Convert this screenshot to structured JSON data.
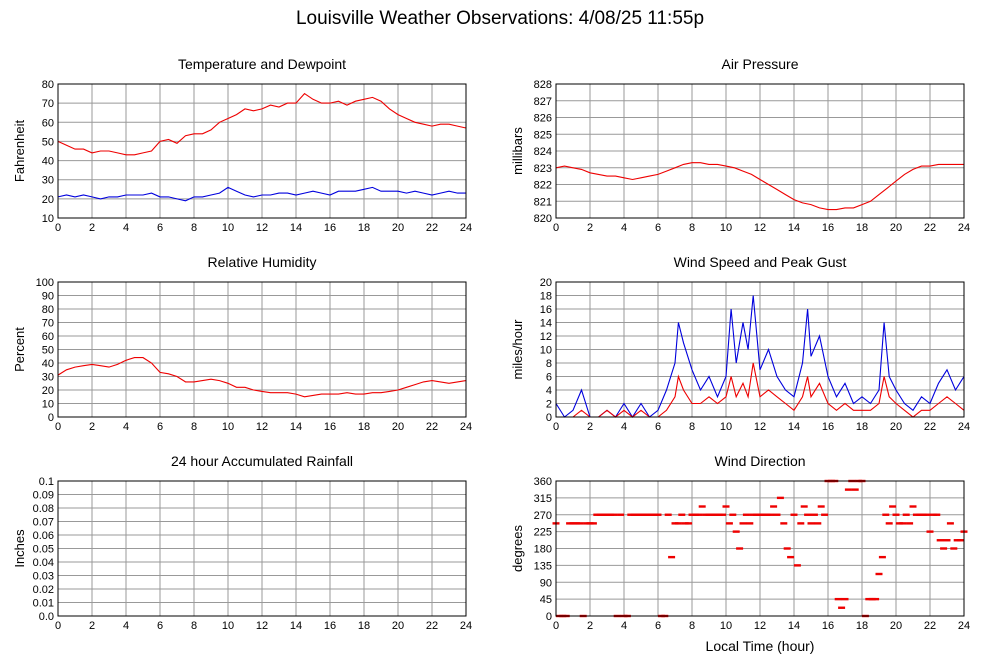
{
  "title": "Louisville Weather Observations: 4/08/25 11:55p",
  "xaxis_label": "Local Time (hour)",
  "colors": {
    "red": "#ee0000",
    "blue": "#0000dd",
    "grid": "#999999"
  },
  "chart_data": [
    {
      "type": "line",
      "title": "Temperature and Dewpoint",
      "ylabel": "Fahrenheit",
      "xlim": [
        0,
        24
      ],
      "ylim": [
        10,
        80
      ],
      "xticks": [
        "0",
        "2",
        "4",
        "6",
        "8",
        "10",
        "12",
        "14",
        "16",
        "18",
        "20",
        "22",
        "24"
      ],
      "yticks": [
        "10",
        "20",
        "30",
        "40",
        "50",
        "60",
        "70",
        "80"
      ],
      "grid": true,
      "series": [
        {
          "color": "#ee0000",
          "x": [
            0,
            0.5,
            1,
            1.5,
            2,
            2.5,
            3,
            3.5,
            4,
            4.5,
            5,
            5.5,
            6,
            6.5,
            7,
            7.5,
            8,
            8.5,
            9,
            9.5,
            10,
            10.5,
            11,
            11.5,
            12,
            12.5,
            13,
            13.5,
            14,
            14.5,
            15,
            15.5,
            16,
            16.5,
            17,
            17.5,
            18,
            18.5,
            19,
            19.5,
            20,
            20.5,
            21,
            21.5,
            22,
            22.5,
            23,
            23.5,
            24
          ],
          "y": [
            50,
            48,
            46,
            46,
            44,
            45,
            45,
            44,
            43,
            43,
            44,
            45,
            50,
            51,
            49,
            53,
            54,
            54,
            56,
            60,
            62,
            64,
            67,
            66,
            67,
            69,
            68,
            70,
            70,
            75,
            72,
            70,
            70,
            71,
            69,
            71,
            72,
            73,
            71,
            67,
            64,
            62,
            60,
            59,
            58,
            59,
            59,
            58,
            57
          ]
        },
        {
          "color": "#0000dd",
          "x": [
            0,
            0.5,
            1,
            1.5,
            2,
            2.5,
            3,
            3.5,
            4,
            4.5,
            5,
            5.5,
            6,
            6.5,
            7,
            7.5,
            8,
            8.5,
            9,
            9.5,
            10,
            10.5,
            11,
            11.5,
            12,
            12.5,
            13,
            13.5,
            14,
            14.5,
            15,
            15.5,
            16,
            16.5,
            17,
            17.5,
            18,
            18.5,
            19,
            19.5,
            20,
            20.5,
            21,
            21.5,
            22,
            22.5,
            23,
            23.5,
            24
          ],
          "y": [
            21,
            22,
            21,
            22,
            21,
            20,
            21,
            21,
            22,
            22,
            22,
            23,
            21,
            21,
            20,
            19,
            21,
            21,
            22,
            23,
            26,
            24,
            22,
            21,
            22,
            22,
            23,
            23,
            22,
            23,
            24,
            23,
            22,
            24,
            24,
            24,
            25,
            26,
            24,
            24,
            24,
            23,
            24,
            23,
            22,
            23,
            24,
            23,
            23
          ]
        }
      ]
    },
    {
      "type": "line",
      "title": "Air Pressure",
      "ylabel": "millibars",
      "xlim": [
        0,
        24
      ],
      "ylim": [
        820,
        828
      ],
      "xticks": [
        "0",
        "2",
        "4",
        "6",
        "8",
        "10",
        "12",
        "14",
        "16",
        "18",
        "20",
        "22",
        "24"
      ],
      "yticks": [
        "820",
        "821",
        "822",
        "823",
        "824",
        "825",
        "826",
        "827",
        "828"
      ],
      "grid": true,
      "series": [
        {
          "color": "#ee0000",
          "x": [
            0,
            0.5,
            1,
            1.5,
            2,
            2.5,
            3,
            3.5,
            4,
            4.5,
            5,
            5.5,
            6,
            6.5,
            7,
            7.5,
            8,
            8.5,
            9,
            9.5,
            10,
            10.5,
            11,
            11.5,
            12,
            12.5,
            13,
            13.5,
            14,
            14.5,
            15,
            15.5,
            16,
            16.5,
            17,
            17.5,
            18,
            18.5,
            19,
            19.5,
            20,
            20.5,
            21,
            21.5,
            22,
            22.5,
            23,
            23.5,
            24
          ],
          "y": [
            823.0,
            823.1,
            823.0,
            822.9,
            822.7,
            822.6,
            822.5,
            822.5,
            822.4,
            822.3,
            822.4,
            822.5,
            822.6,
            822.8,
            823.0,
            823.2,
            823.3,
            823.3,
            823.2,
            823.2,
            823.1,
            823.0,
            822.8,
            822.6,
            822.3,
            822.0,
            821.7,
            821.4,
            821.1,
            820.9,
            820.8,
            820.6,
            820.5,
            820.5,
            820.6,
            820.6,
            820.8,
            821.0,
            821.4,
            821.8,
            822.2,
            822.6,
            822.9,
            823.1,
            823.1,
            823.2,
            823.2,
            823.2,
            823.2
          ]
        }
      ]
    },
    {
      "type": "line",
      "title": "Relative Humidity",
      "ylabel": "Percent",
      "xlim": [
        0,
        24
      ],
      "ylim": [
        0,
        100
      ],
      "xticks": [
        "0",
        "2",
        "4",
        "6",
        "8",
        "10",
        "12",
        "14",
        "16",
        "18",
        "20",
        "22",
        "24"
      ],
      "yticks": [
        "0",
        "10",
        "20",
        "30",
        "40",
        "50",
        "60",
        "70",
        "80",
        "90",
        "100"
      ],
      "grid": true,
      "series": [
        {
          "color": "#ee0000",
          "x": [
            0,
            0.5,
            1,
            1.5,
            2,
            2.5,
            3,
            3.5,
            4,
            4.5,
            5,
            5.5,
            6,
            6.5,
            7,
            7.5,
            8,
            8.5,
            9,
            9.5,
            10,
            10.5,
            11,
            11.5,
            12,
            12.5,
            13,
            13.5,
            14,
            14.5,
            15,
            15.5,
            16,
            16.5,
            17,
            17.5,
            18,
            18.5,
            19,
            19.5,
            20,
            20.5,
            21,
            21.5,
            22,
            22.5,
            23,
            23.5,
            24
          ],
          "y": [
            31,
            35,
            37,
            38,
            39,
            38,
            37,
            39,
            42,
            44,
            44,
            40,
            33,
            32,
            30,
            26,
            26,
            27,
            28,
            27,
            25,
            22,
            22,
            20,
            19,
            18,
            18,
            18,
            17,
            15,
            16,
            17,
            17,
            17,
            18,
            17,
            17,
            18,
            18,
            19,
            20,
            22,
            24,
            26,
            27,
            26,
            25,
            26,
            27
          ]
        }
      ]
    },
    {
      "type": "line",
      "title": "Wind Speed and Peak Gust",
      "ylabel": "miles/hour",
      "xlim": [
        0,
        24
      ],
      "ylim": [
        0,
        20
      ],
      "xticks": [
        "0",
        "2",
        "4",
        "6",
        "8",
        "10",
        "12",
        "14",
        "16",
        "18",
        "20",
        "22",
        "24"
      ],
      "yticks": [
        "0",
        "2",
        "4",
        "6",
        "8",
        "10",
        "12",
        "14",
        "16",
        "18",
        "20"
      ],
      "grid": true,
      "series": [
        {
          "color": "#0000dd",
          "x": [
            0,
            0.5,
            1,
            1.5,
            2,
            2.5,
            3,
            3.5,
            4,
            4.5,
            5,
            5.5,
            6,
            6.5,
            7,
            7.2,
            7.5,
            8,
            8.5,
            9,
            9.5,
            10,
            10.3,
            10.6,
            11,
            11.3,
            11.6,
            12,
            12.5,
            13,
            13.5,
            14,
            14.5,
            14.8,
            15,
            15.5,
            16,
            16.5,
            17,
            17.5,
            18,
            18.5,
            19,
            19.3,
            19.6,
            20,
            20.5,
            21,
            21.5,
            22,
            22.5,
            23,
            23.5,
            24
          ],
          "y": [
            2,
            0,
            1,
            4,
            0,
            0,
            1,
            0,
            2,
            0,
            2,
            0,
            1,
            4,
            8,
            14,
            11,
            7,
            4,
            6,
            3,
            6,
            16,
            8,
            14,
            10,
            18,
            7,
            10,
            6,
            4,
            3,
            8,
            16,
            9,
            12,
            6,
            3,
            5,
            2,
            3,
            2,
            4,
            14,
            6,
            4,
            2,
            1,
            3,
            2,
            5,
            7,
            4,
            6
          ]
        },
        {
          "color": "#ee0000",
          "x": [
            0,
            0.5,
            1,
            1.5,
            2,
            2.5,
            3,
            3.5,
            4,
            4.5,
            5,
            5.5,
            6,
            6.5,
            7,
            7.2,
            7.5,
            8,
            8.5,
            9,
            9.5,
            10,
            10.3,
            10.6,
            11,
            11.3,
            11.6,
            12,
            12.5,
            13,
            13.5,
            14,
            14.5,
            14.8,
            15,
            15.5,
            16,
            16.5,
            17,
            17.5,
            18,
            18.5,
            19,
            19.3,
            19.6,
            20,
            20.5,
            21,
            21.5,
            22,
            22.5,
            23,
            23.5,
            24
          ],
          "y": [
            0,
            0,
            0,
            1,
            0,
            0,
            1,
            0,
            1,
            0,
            1,
            0,
            0,
            1,
            3,
            6,
            4,
            2,
            2,
            3,
            2,
            3,
            6,
            3,
            5,
            3,
            8,
            3,
            4,
            3,
            2,
            1,
            3,
            6,
            3,
            5,
            2,
            1,
            2,
            1,
            1,
            1,
            2,
            6,
            3,
            2,
            1,
            0,
            1,
            1,
            2,
            3,
            2,
            1
          ]
        }
      ]
    },
    {
      "type": "line",
      "title": "24 hour Accumulated Rainfall",
      "ylabel": "Inches",
      "xlim": [
        0,
        24
      ],
      "ylim": [
        0,
        0.1
      ],
      "xticks": [
        "0",
        "2",
        "4",
        "6",
        "8",
        "10",
        "12",
        "14",
        "16",
        "18",
        "20",
        "22",
        "24"
      ],
      "yticks": [
        "0.0",
        "0.01",
        "0.02",
        "0.03",
        "0.04",
        "0.05",
        "0.06",
        "0.07",
        "0.08",
        "0.09",
        "0.1"
      ],
      "grid": true,
      "series": [
        {
          "color": "#ee0000",
          "x": [
            0,
            24
          ],
          "y": [
            0,
            0
          ]
        }
      ]
    },
    {
      "type": "scatter",
      "title": "Wind Direction",
      "ylabel": "degrees",
      "xlim": [
        0,
        24
      ],
      "ylim": [
        0,
        360
      ],
      "xticks": [
        "0",
        "2",
        "4",
        "6",
        "8",
        "10",
        "12",
        "14",
        "16",
        "18",
        "20",
        "22",
        "24"
      ],
      "yticks": [
        "0",
        "45",
        "90",
        "135",
        "180",
        "225",
        "270",
        "315",
        "360"
      ],
      "grid": true,
      "series": [
        {
          "color": "#ee0000",
          "x": [
            0,
            0.2,
            0.4,
            0.6,
            0.8,
            1.0,
            1.2,
            1.4,
            1.6,
            1.8,
            2.0,
            2.2,
            2.4,
            2.6,
            2.8,
            3.0,
            3.2,
            3.4,
            3.6,
            3.8,
            4.0,
            4.2,
            4.4,
            4.6,
            4.8,
            5.0,
            5.2,
            5.4,
            5.6,
            5.8,
            6.0,
            6.2,
            6.4,
            6.6,
            6.8,
            7.0,
            7.2,
            7.4,
            7.6,
            7.8,
            8.0,
            8.2,
            8.4,
            8.6,
            8.8,
            9.0,
            9.2,
            9.4,
            9.6,
            9.8,
            10.0,
            10.2,
            10.4,
            10.6,
            10.8,
            11.0,
            11.2,
            11.4,
            11.6,
            11.8,
            12.0,
            12.2,
            12.4,
            12.6,
            12.8,
            13.0,
            13.2,
            13.4,
            13.6,
            13.8,
            14.0,
            14.2,
            14.4,
            14.6,
            14.8,
            15.0,
            15.2,
            15.4,
            15.6,
            15.8,
            16.0,
            16.2,
            16.4,
            16.6,
            16.8,
            17.0,
            17.2,
            17.4,
            17.6,
            17.8,
            18.0,
            18.2,
            18.4,
            18.6,
            18.8,
            19.0,
            19.2,
            19.4,
            19.6,
            19.8,
            20.0,
            20.2,
            20.4,
            20.6,
            20.8,
            21.0,
            21.2,
            21.4,
            21.6,
            21.8,
            22.0,
            22.2,
            22.4,
            22.6,
            22.8,
            23.0,
            23.2,
            23.4,
            23.6,
            23.8,
            24.0
          ],
          "y": [
            247,
            0,
            0,
            0,
            247,
            247,
            247,
            247,
            0,
            247,
            247,
            247,
            270,
            270,
            270,
            270,
            270,
            270,
            0,
            270,
            0,
            0,
            270,
            270,
            270,
            270,
            270,
            270,
            270,
            270,
            270,
            0,
            0,
            270,
            157,
            247,
            247,
            270,
            247,
            247,
            270,
            270,
            270,
            292,
            270,
            270,
            270,
            270,
            270,
            270,
            292,
            247,
            270,
            225,
            180,
            247,
            270,
            247,
            270,
            270,
            270,
            270,
            270,
            270,
            292,
            270,
            315,
            247,
            180,
            157,
            270,
            135,
            247,
            292,
            270,
            247,
            270,
            247,
            292,
            270,
            360,
            360,
            360,
            45,
            22,
            45,
            337,
            360,
            337,
            360,
            360,
            0,
            45,
            45,
            45,
            112,
            157,
            270,
            247,
            292,
            270,
            247,
            247,
            270,
            247,
            292,
            270,
            270,
            270,
            270,
            225,
            270,
            270,
            202,
            180,
            202,
            247,
            180,
            202,
            202,
            225
          ]
        }
      ]
    }
  ]
}
